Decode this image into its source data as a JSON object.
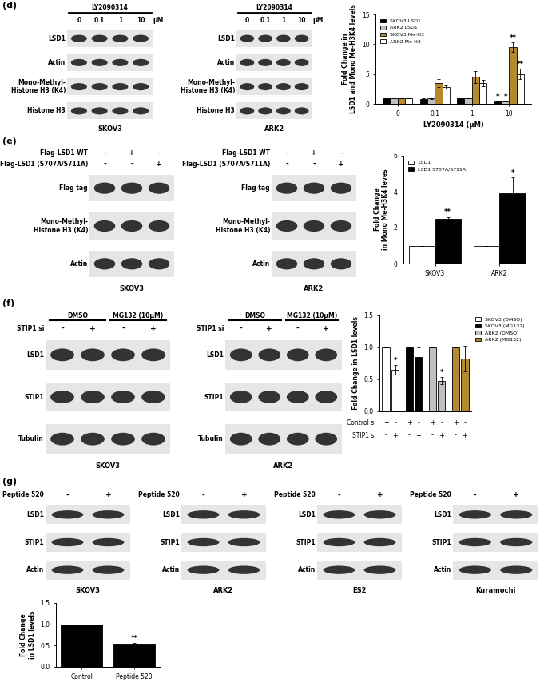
{
  "panel_labels": [
    "(d)",
    "(e)",
    "(f)",
    "(g)"
  ],
  "blots": [
    [
      {
        "cell": "SKOV3",
        "treatment": "LY2090314",
        "lanes": [
          "0",
          "0.1",
          "1",
          "10"
        ],
        "unit": "μM",
        "rows": [
          "LSD1",
          "Actin",
          "Mono-Methyl-\nHistone H3 (K4)",
          "Histone H3"
        ]
      },
      {
        "cell": "ARK2",
        "treatment": "LY2090314",
        "lanes": [
          "0",
          "0.1",
          "1",
          "10"
        ],
        "unit": "μM",
        "rows": [
          "LSD1",
          "Actin",
          "Mono-Methyl-\nHistone H3 (K4)",
          "Histone H3"
        ]
      }
    ],
    [
      {
        "cell": "SKOV3",
        "conditions": [
          {
            "label": "Flag-LSD1 WT",
            "marks": [
              "-",
              "+",
              "-"
            ]
          },
          {
            "label": "Flag-LSD1 (S707A/S711A)",
            "marks": [
              "-",
              "-",
              "+"
            ]
          }
        ],
        "rows": [
          "Flag tag",
          "Mono-Methyl-\nHistone H3 (K4)",
          "Actin"
        ]
      },
      {
        "cell": "ARK2",
        "conditions": [
          {
            "label": "Flag-LSD1 WT",
            "marks": [
              "-",
              "+",
              "-"
            ]
          },
          {
            "label": "Flag-LSD1 (S707A/S711A)",
            "marks": [
              "-",
              "-",
              "+"
            ]
          }
        ],
        "rows": [
          "Flag tag",
          "Mono-Methyl-\nHistone H3 (K4)",
          "Actin"
        ]
      }
    ],
    [
      {
        "cell": "SKOV3",
        "groups": [
          "DMSO",
          "MG132 (10μM)"
        ],
        "conditions": [
          {
            "label": "STIP1 si",
            "marks": [
              "-",
              "+",
              "-",
              "+"
            ]
          }
        ],
        "rows": [
          "LSD1",
          "STIP1",
          "Tubulin"
        ]
      },
      {
        "cell": "ARK2",
        "groups": [
          "DMSO",
          "MG132 (10μM)"
        ],
        "conditions": [
          {
            "label": "STIP1 si",
            "marks": [
              "-",
              "+",
              "-",
              "+"
            ]
          }
        ],
        "rows": [
          "LSD1",
          "STIP1",
          "Tubulin"
        ]
      }
    ],
    [
      {
        "cell": "SKOV3",
        "conditions": [
          {
            "label": "Peptide 520",
            "marks": [
              "-",
              "+"
            ]
          }
        ],
        "rows": [
          "LSD1",
          "STIP1",
          "Actin"
        ]
      },
      {
        "cell": "ARK2",
        "conditions": [
          {
            "label": "Peptide 520",
            "marks": [
              "-",
              "+"
            ]
          }
        ],
        "rows": [
          "LSD1",
          "STIP1",
          "Actin"
        ]
      },
      {
        "cell": "ES2",
        "conditions": [
          {
            "label": "Peptide 520",
            "marks": [
              "-",
              "+"
            ]
          }
        ],
        "rows": [
          "LSD1",
          "STIP1",
          "Actin"
        ]
      },
      {
        "cell": "Kuramochi",
        "conditions": [
          {
            "label": "Peptide 520",
            "marks": [
              "-",
              "+"
            ]
          }
        ],
        "rows": [
          "LSD1",
          "STIP1",
          "Actin"
        ]
      }
    ]
  ],
  "chart_data": [
    {
      "type": "bar",
      "categories": [
        "0",
        "0.1",
        "1",
        "10"
      ],
      "x_label": "LY2090314 (μM)",
      "y_label": "Fold Change in\nLSD1 and Mono Me-H3K4 levels",
      "ylim": [
        0,
        15
      ],
      "yticks": [
        0,
        5,
        10,
        15
      ],
      "legend": "upper left",
      "series": [
        {
          "name": "SKOV3 LSD1",
          "color": "#000000",
          "values": [
            1,
            0.85,
            0.9,
            0.35
          ],
          "errors": [
            0,
            0.05,
            0.08,
            0.05
          ],
          "significance": [
            null,
            null,
            null,
            "*"
          ]
        },
        {
          "name": "ARK2 LSD1",
          "color": "#c0c0c0",
          "values": [
            1,
            0.9,
            0.95,
            0.4
          ],
          "errors": [
            0,
            0.05,
            0.05,
            0.05
          ],
          "significance": [
            null,
            null,
            null,
            "*"
          ]
        },
        {
          "name": "SKOV3 Me-H3",
          "color": "#b5892e",
          "values": [
            1,
            3.5,
            4.5,
            9.5
          ],
          "errors": [
            0,
            0.7,
            1.0,
            0.8
          ],
          "significance": [
            null,
            null,
            null,
            "**"
          ]
        },
        {
          "name": "ARK2 Me-H3",
          "color": "#ffffff",
          "values": [
            1,
            2.8,
            3.5,
            5
          ],
          "errors": [
            0,
            0.3,
            0.5,
            0.9
          ],
          "significance": [
            null,
            null,
            null,
            "**"
          ]
        }
      ]
    },
    {
      "type": "bar",
      "categories": [
        "SKOV3",
        "ARK2"
      ],
      "y_label": "Fold Change\nin Mono Me-H3K4 leves",
      "ylim": [
        0,
        6
      ],
      "yticks": [
        0,
        2,
        4,
        6
      ],
      "legend": "upper left",
      "series": [
        {
          "name": "LSD1",
          "color": "#ffffff",
          "values": [
            1,
            1
          ],
          "errors": [
            0,
            0
          ]
        },
        {
          "name": "LSD1 S707A/S711A",
          "color": "#000000",
          "values": [
            2.5,
            3.9
          ],
          "errors": [
            0.1,
            0.9
          ],
          "significance": [
            "**",
            "*"
          ]
        }
      ]
    },
    {
      "type": "bar",
      "y_label": "Fold Change in LSD1 levels",
      "ylim": [
        0,
        1.5
      ],
      "yticks": [
        {
          "value": 0,
          "label": "0.0"
        },
        {
          "value": 0.5,
          "label": "0.5"
        },
        {
          "value": 1,
          "label": "1.0"
        },
        {
          "value": 1.5,
          "label": "1.5"
        }
      ],
      "legend": "right",
      "tick_labels": "y",
      "x_table": [
        {
          "label": "Control si",
          "marks": [
            "+",
            "-",
            "+",
            "-",
            "+",
            "-",
            "+",
            "-"
          ]
        },
        {
          "label": "STIP1 si",
          "marks": [
            "-",
            "+",
            "-",
            "+",
            "-",
            "+",
            "-",
            "+"
          ]
        }
      ],
      "series": [
        {
          "name": "SKOV3 (DMSO)",
          "color": "#ffffff",
          "values": [
            1,
            0.65
          ],
          "errors": [
            0,
            0.07
          ],
          "significance": [
            null,
            "*"
          ]
        },
        {
          "name": "SKOV3 (MG132)",
          "color": "#000000",
          "values": [
            1,
            0.85
          ],
          "errors": [
            0,
            0.15
          ]
        },
        {
          "name": "ARK2 (DMSO)",
          "color": "#c0c0c0",
          "values": [
            1,
            0.48
          ],
          "errors": [
            0,
            0.06
          ],
          "significance": [
            null,
            "*"
          ]
        },
        {
          "name": "ARK2 (MG132)",
          "color": "#b5892e",
          "values": [
            1,
            0.82
          ],
          "errors": [
            0,
            0.2
          ]
        }
      ]
    },
    {
      "type": "bar",
      "categories": [
        "Control",
        "Peptide 520"
      ],
      "y_label": "Fold Change\nin LSD1 levels",
      "ylim": [
        0,
        1.5
      ],
      "yticks": [
        {
          "value": 0,
          "label": "0.0"
        },
        {
          "value": 0.5,
          "label": "0.5"
        },
        {
          "value": 1,
          "label": "1.0"
        },
        {
          "value": 1.5,
          "label": "1.5"
        }
      ],
      "color": "#000000",
      "values": [
        1,
        0.52
      ],
      "errors": [
        0,
        0.05
      ],
      "significance": [
        null,
        "**"
      ]
    }
  ]
}
